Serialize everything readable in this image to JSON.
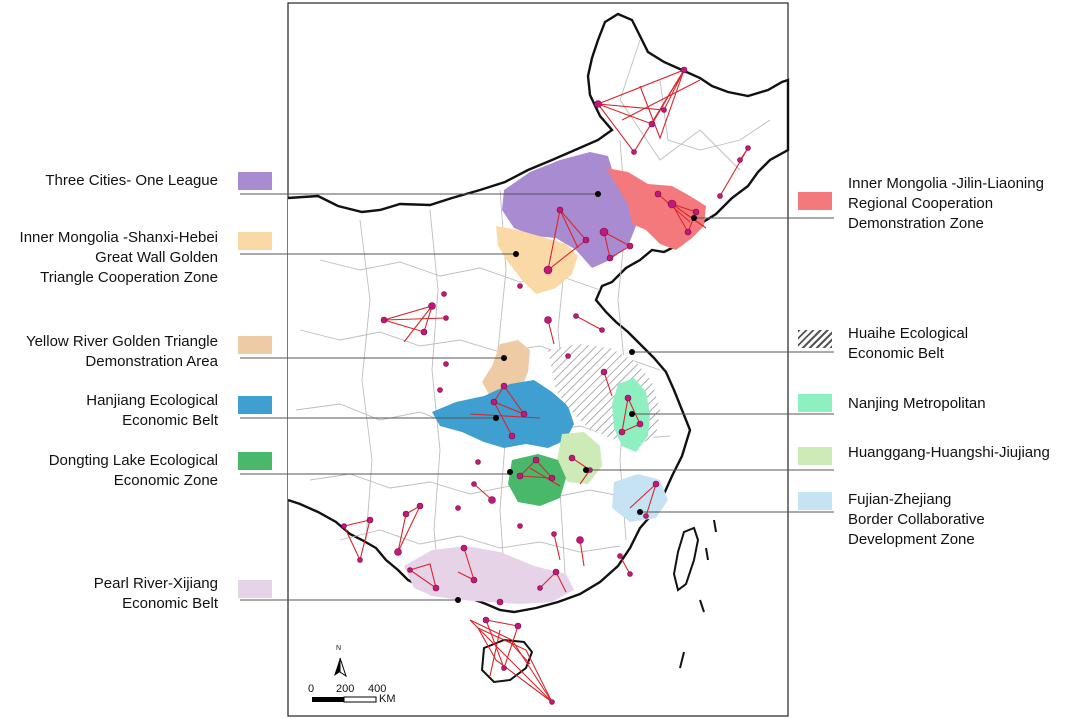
{
  "map": {
    "scale": {
      "ticks": [
        "0",
        "200",
        "400"
      ],
      "unit": "KM"
    },
    "north_label": "N"
  },
  "legend_left": [
    {
      "lines": [
        "Three Cities- One League"
      ],
      "color": "#a98bd1"
    },
    {
      "lines": [
        "Inner Mongolia -Shanxi-Hebei",
        "Great Wall Golden",
        "Triangle Cooperation Zone"
      ],
      "color": "#fbd9a6"
    },
    {
      "lines": [
        "Yellow River Golden Triangle",
        "Demonstration Area"
      ],
      "color": "#efcba5"
    },
    {
      "lines": [
        "Hanjiang Ecological",
        "Economic Belt"
      ],
      "color": "#3e9fd0"
    },
    {
      "lines": [
        "Dongting Lake Ecological",
        "Economic Zone"
      ],
      "color": "#49b86a"
    },
    {
      "lines": [
        "Pearl River-Xijiang",
        "Economic Belt"
      ],
      "color": "#e6d3e8"
    }
  ],
  "legend_right": [
    {
      "lines": [
        "Inner Mongolia -Jilin-Liaoning",
        "Regional Cooperation",
        "Demonstration Zone"
      ],
      "color": "#f4797d"
    },
    {
      "lines": [
        "Huaihe Ecological",
        "Economic Belt"
      ],
      "color": "hatch"
    },
    {
      "lines": [
        "Nanjing Metropolitan"
      ],
      "color": "#8ef0c0"
    },
    {
      "lines": [
        "Huanggang-Huangshi-Jiujiang"
      ],
      "color": "#cdebb7"
    },
    {
      "lines": [
        "Fujian-Zhejiang",
        "Border Collaborative",
        "Development Zone"
      ],
      "color": "#c5e3f3"
    }
  ],
  "colors": {
    "link_red": "#d8262b",
    "node_magenta": "#c2187a",
    "border": "#111111",
    "province_line": "#b9b9b9"
  }
}
